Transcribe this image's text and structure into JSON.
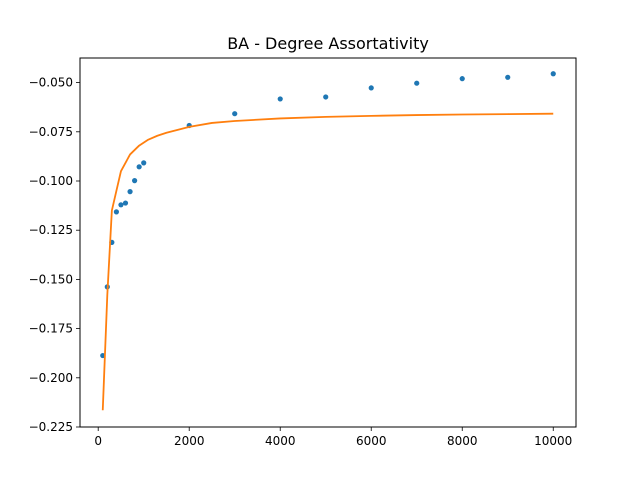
{
  "chart_data": {
    "type": "scatter",
    "title": "BA - Degree Assortativity",
    "xlabel": "",
    "ylabel": "",
    "xlim": [
      -400,
      10500
    ],
    "ylim": [
      -0.225,
      -0.0375
    ],
    "xticks": [
      0,
      2000,
      4000,
      6000,
      8000,
      10000
    ],
    "xtick_labels": [
      "0",
      "2000",
      "4000",
      "6000",
      "8000",
      "10000"
    ],
    "yticks": [
      -0.225,
      -0.2,
      -0.175,
      -0.15,
      -0.125,
      -0.1,
      -0.075,
      -0.05
    ],
    "ytick_labels": [
      "−0.225",
      "−0.200",
      "−0.175",
      "−0.150",
      "−0.125",
      "−0.100",
      "−0.075",
      "−0.050"
    ],
    "grid": false,
    "legend": "none",
    "series": [
      {
        "type": "scatter",
        "color": "#1f77b4",
        "x": [
          100,
          200,
          300,
          400,
          500,
          600,
          700,
          800,
          900,
          1000,
          2000,
          3000,
          4000,
          5000,
          6000,
          7000,
          8000,
          9000,
          10000
        ],
        "y": [
          -0.1887,
          -0.1538,
          -0.1312,
          -0.1157,
          -0.1121,
          -0.1112,
          -0.1054,
          -0.0998,
          -0.0928,
          -0.0908,
          -0.0718,
          -0.0658,
          -0.0583,
          -0.0573,
          -0.0527,
          -0.0503,
          -0.048,
          -0.0473,
          -0.0455
        ]
      },
      {
        "type": "line",
        "color": "#ff7f0e",
        "x": [
          100,
          200,
          300,
          400,
          500,
          700,
          900,
          1100,
          1300,
          1500,
          2000,
          2500,
          3000,
          4000,
          5000,
          6000,
          7000,
          8000,
          9000,
          10000
        ],
        "y": [
          -0.2165,
          -0.158,
          -0.115,
          -0.105,
          -0.095,
          -0.0865,
          -0.082,
          -0.079,
          -0.077,
          -0.0755,
          -0.0725,
          -0.0705,
          -0.0695,
          -0.0682,
          -0.0674,
          -0.0669,
          -0.0665,
          -0.0662,
          -0.066,
          -0.0658
        ]
      }
    ]
  }
}
